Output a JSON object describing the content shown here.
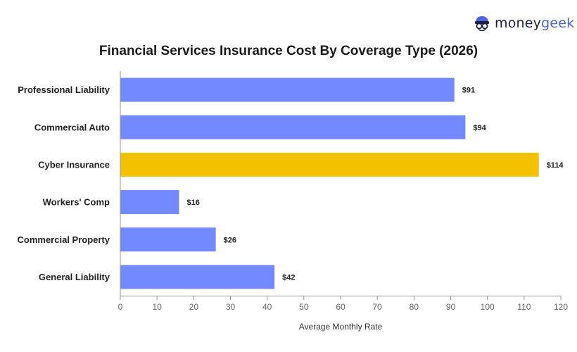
{
  "brand": {
    "part1": "money",
    "part2": "geek"
  },
  "chart_data": {
    "type": "bar",
    "orientation": "horizontal",
    "title": "Financial Services Insurance Cost By Coverage Type (2026)",
    "xlabel": "Average Monthly Rate",
    "ylabel": "",
    "categories": [
      "Professional Liability",
      "Commercial Auto",
      "Cyber Insurance",
      "Workers' Comp",
      "Commercial Property",
      "General Liability"
    ],
    "values": [
      91,
      94,
      114,
      16,
      26,
      42
    ],
    "value_labels": [
      "$91",
      "$94",
      "$114",
      "$16",
      "$26",
      "$42"
    ],
    "highlight_category": "Cyber Insurance",
    "xlim": [
      0,
      120
    ],
    "xticks": [
      "0",
      "10",
      "20",
      "30",
      "40",
      "50",
      "60",
      "70",
      "80",
      "90",
      "100",
      "110",
      "120"
    ],
    "colors": {
      "bar": "#7389ff",
      "highlight": "#f2c200",
      "axis": "#999999",
      "text": "#222222"
    },
    "grid": false
  }
}
